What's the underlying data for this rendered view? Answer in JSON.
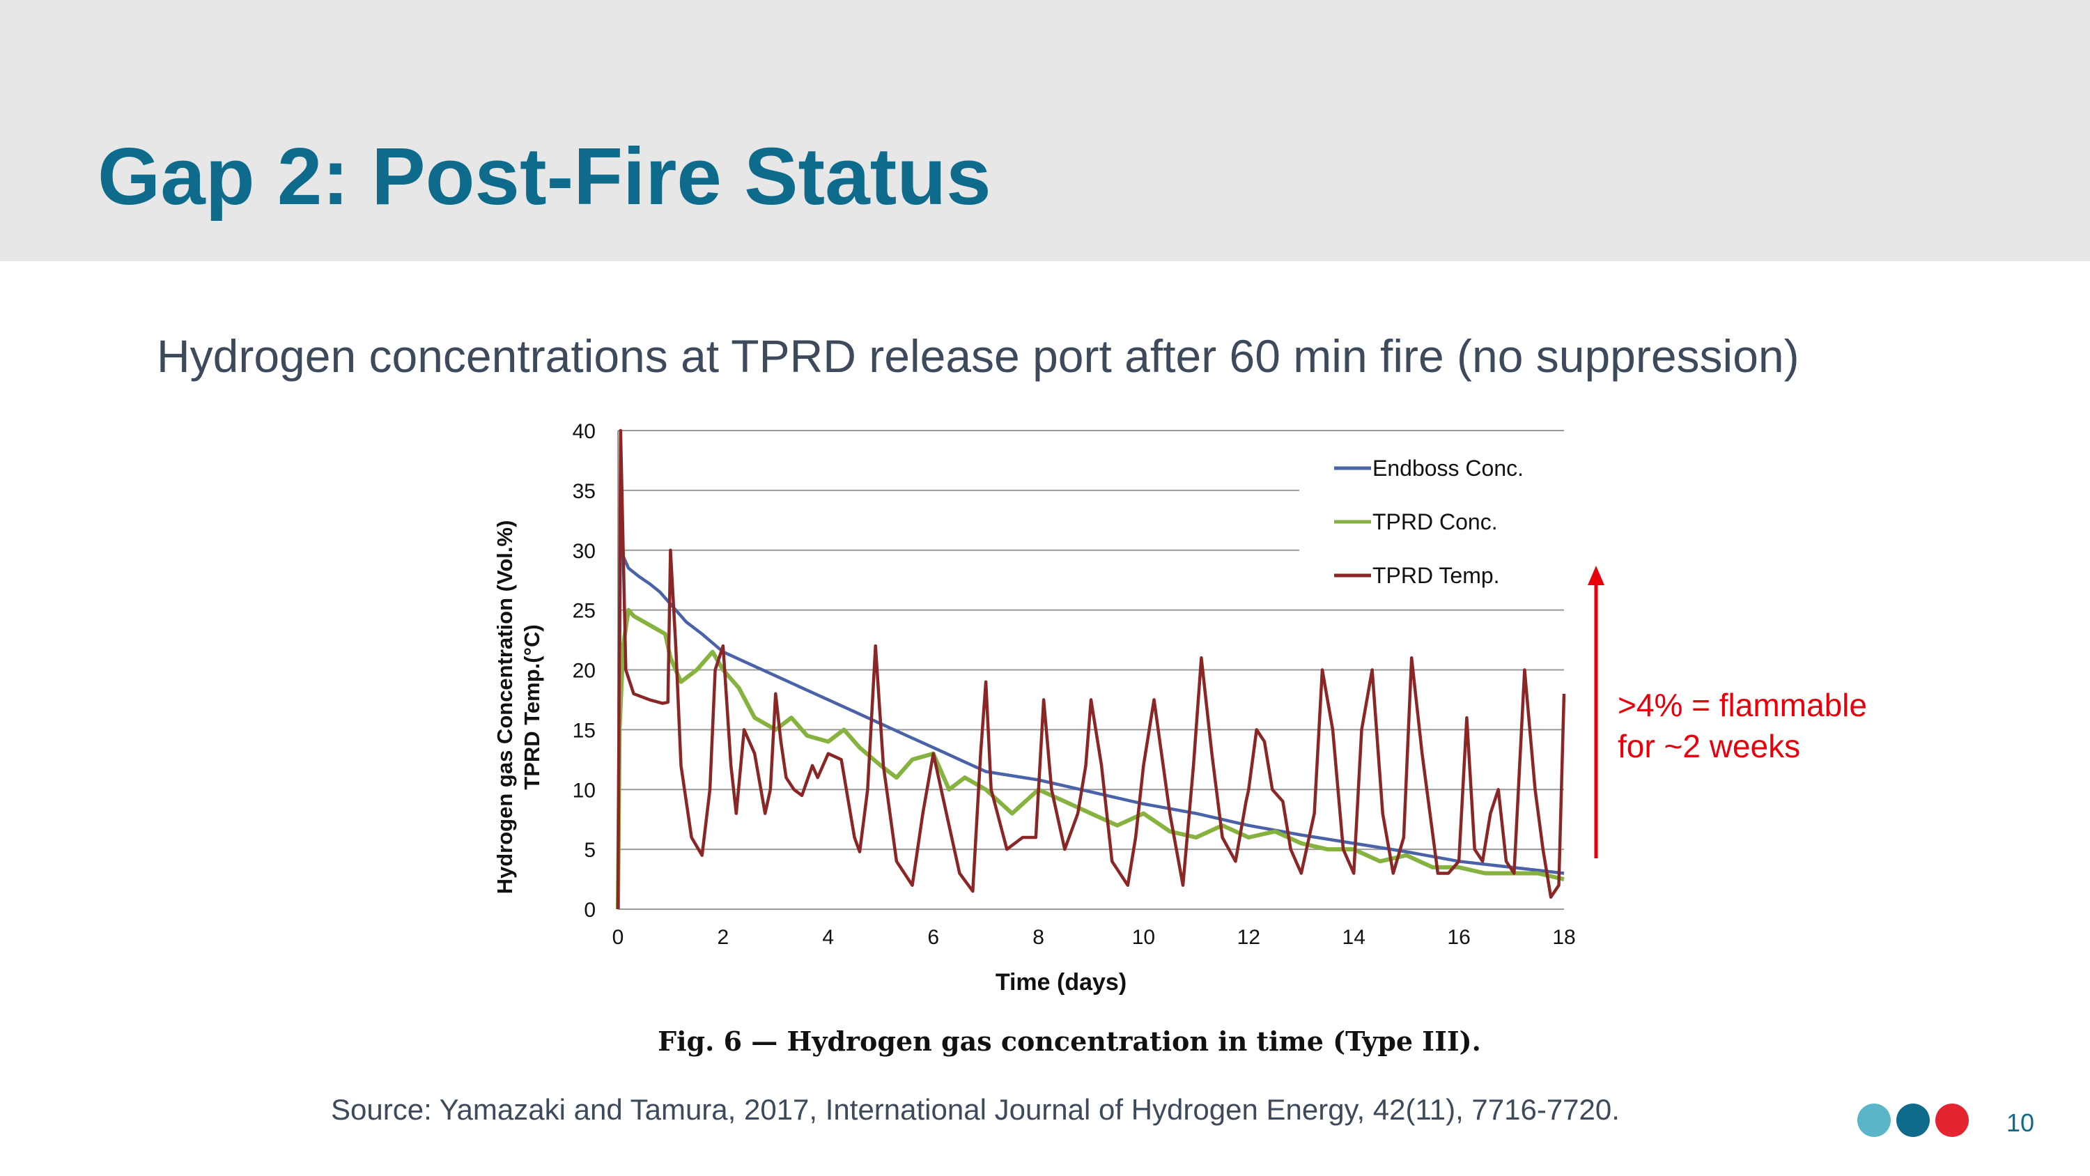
{
  "slide": {
    "title": "Gap 2: Post-Fire Status",
    "subtitle": "Hydrogen concentrations at TPRD release port after 60 min fire (no suppression)",
    "source": "Source: Yamazaki and Tamura, 2017, International Journal of Hydrogen Energy, 42(11), 7716-7720.",
    "page_number": "10",
    "annotation": {
      "line1": ">4% = flammable",
      "line2": "for ~2 weeks",
      "color": "#e8000b"
    },
    "brand_dots": [
      "#5bb5c8",
      "#0f6b8c",
      "#e4252f"
    ],
    "colors": {
      "title": "#0f6b8c",
      "body_text": "#3d4a5c",
      "header_band": "#e7e7e7"
    }
  },
  "chart_data": {
    "type": "line",
    "title": "Fig. 6 — Hydrogen gas concentration in time (Type III).",
    "xlabel": "Time (days)",
    "ylabel_line1": "Hydrogen gas Concentration (Vol.%)",
    "ylabel_line2": "TPRD Temp.(°C)",
    "xlim": [
      0,
      18
    ],
    "ylim": [
      0,
      40
    ],
    "x_ticks": [
      "0",
      "2",
      "4",
      "6",
      "8",
      "10",
      "12",
      "14",
      "16",
      "18"
    ],
    "y_ticks": [
      "0",
      "5",
      "10",
      "15",
      "20",
      "25",
      "30",
      "35",
      "40"
    ],
    "grid": "horizontal",
    "legend_position": "top-right",
    "series": [
      {
        "name": "Endboss Conc.",
        "color": "#4a63a8",
        "x": [
          0,
          0.05,
          0.1,
          0.2,
          0.4,
          0.6,
          0.8,
          1.0,
          1.3,
          1.6,
          2.0,
          2.5,
          3.0,
          3.5,
          4.0,
          4.5,
          5.0,
          5.5,
          6.0,
          6.5,
          7.0,
          8.0,
          9.0,
          10.0,
          11.0,
          12.0,
          13.0,
          14.0,
          15.0,
          16.0,
          17.0,
          18.0
        ],
        "y": [
          0,
          32.5,
          29.5,
          28.5,
          27.8,
          27.2,
          26.5,
          25.5,
          24.0,
          23.0,
          21.5,
          20.5,
          19.5,
          18.5,
          17.5,
          16.5,
          15.5,
          14.5,
          13.5,
          12.5,
          11.5,
          10.8,
          9.8,
          8.8,
          8.0,
          7.0,
          6.2,
          5.5,
          4.8,
          4.0,
          3.5,
          3.0
        ]
      },
      {
        "name": "TPRD Conc.",
        "color": "#86b23f",
        "x": [
          0,
          0.03,
          0.1,
          0.2,
          0.3,
          0.5,
          0.7,
          0.9,
          1.0,
          1.2,
          1.5,
          1.8,
          2.0,
          2.3,
          2.6,
          3.0,
          3.3,
          3.6,
          4.0,
          4.3,
          4.6,
          5.0,
          5.3,
          5.6,
          6.0,
          6.3,
          6.6,
          7.0,
          7.5,
          8.0,
          8.5,
          9.0,
          9.5,
          10.0,
          10.5,
          11.0,
          11.5,
          12.0,
          12.5,
          13.0,
          13.5,
          14.0,
          14.5,
          15.0,
          15.5,
          16.0,
          16.5,
          17.0,
          17.5,
          18.0
        ],
        "y": [
          0,
          15,
          22,
          25,
          24.5,
          24.0,
          23.5,
          23.0,
          21,
          19,
          20,
          21.5,
          20,
          18.5,
          16,
          15,
          16,
          14.5,
          14,
          15,
          13.5,
          12,
          11,
          12.5,
          13,
          10,
          11,
          10,
          8,
          10,
          9,
          8,
          7,
          8,
          6.5,
          6,
          7,
          6,
          6.5,
          5.5,
          5,
          5,
          4,
          4.5,
          3.5,
          3.5,
          3.0,
          3.0,
          3.0,
          2.5
        ]
      },
      {
        "name": "TPRD Temp.",
        "color": "#8b2626",
        "x": [
          0,
          0.05,
          0.15,
          0.3,
          0.6,
          0.85,
          0.95,
          1.0,
          1.1,
          1.2,
          1.4,
          1.6,
          1.75,
          1.85,
          2.0,
          2.15,
          2.25,
          2.4,
          2.6,
          2.8,
          2.9,
          3.0,
          3.1,
          3.2,
          3.35,
          3.5,
          3.7,
          3.8,
          4.0,
          4.25,
          4.5,
          4.6,
          4.75,
          4.9,
          5.05,
          5.3,
          5.6,
          5.8,
          6.0,
          6.25,
          6.5,
          6.75,
          6.9,
          7.0,
          7.1,
          7.4,
          7.7,
          7.95,
          8.1,
          8.25,
          8.5,
          8.75,
          8.9,
          9.0,
          9.2,
          9.4,
          9.7,
          9.85,
          10.0,
          10.2,
          10.5,
          10.75,
          10.95,
          11.1,
          11.3,
          11.5,
          11.75,
          11.95,
          12.0,
          12.15,
          12.3,
          12.45,
          12.65,
          12.8,
          13.0,
          13.25,
          13.4,
          13.6,
          13.8,
          14.0,
          14.15,
          14.35,
          14.55,
          14.75,
          14.95,
          15.1,
          15.3,
          15.6,
          15.8,
          16.0,
          16.15,
          16.3,
          16.45,
          16.6,
          16.75,
          16.9,
          17.05,
          17.25,
          17.45,
          17.6,
          17.75,
          17.9,
          18.0
        ],
        "y": [
          0,
          40,
          20,
          18,
          17.5,
          17.2,
          17.3,
          30,
          22,
          12,
          6,
          4.5,
          10,
          20,
          22,
          12,
          8,
          15,
          13,
          8,
          10,
          18,
          14,
          11,
          10,
          9.5,
          12,
          11,
          13,
          12.5,
          6.0,
          4.8,
          10,
          22,
          12,
          4,
          2,
          8,
          13,
          8,
          3,
          1.5,
          13,
          19,
          10,
          5,
          6,
          6,
          17.5,
          10,
          5,
          8,
          12,
          17.5,
          12,
          4,
          2,
          6,
          12,
          17.5,
          8,
          2,
          12,
          21,
          13,
          6,
          4,
          9,
          10,
          15,
          14,
          10,
          9,
          5,
          3,
          8,
          20,
          15,
          5,
          3,
          15,
          20,
          8,
          3,
          6,
          21,
          13,
          3,
          3,
          4,
          16,
          5,
          4,
          8,
          10,
          4,
          3,
          20,
          10,
          5,
          1,
          2,
          18
        ]
      }
    ]
  }
}
